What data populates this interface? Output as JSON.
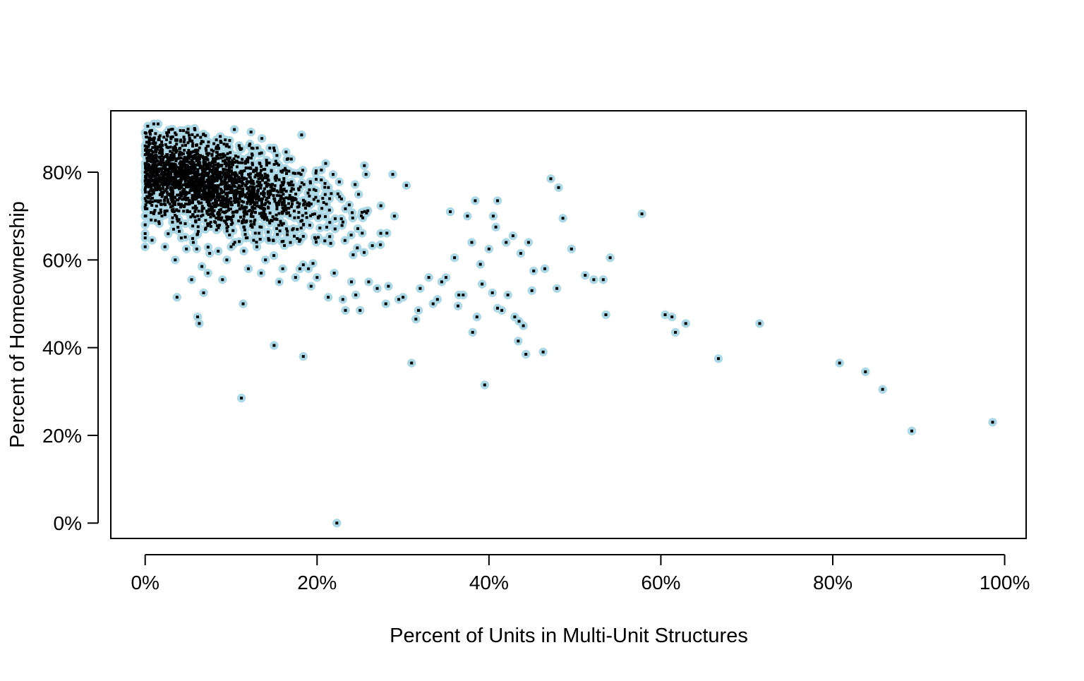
{
  "chart_data": {
    "type": "scatter",
    "title": "",
    "xlabel": "Percent of Units in Multi-Unit Structures",
    "ylabel": "Percent of Homeownership",
    "xlim": [
      -4,
      102.5
    ],
    "ylim": [
      -3.5,
      94
    ],
    "x_ticks": [
      {
        "value": 0,
        "label": "0%"
      },
      {
        "value": 20,
        "label": "20%"
      },
      {
        "value": 40,
        "label": "40%"
      },
      {
        "value": 60,
        "label": "60%"
      },
      {
        "value": 80,
        "label": "80%"
      },
      {
        "value": 100,
        "label": "100%"
      }
    ],
    "y_ticks": [
      {
        "value": 0,
        "label": "0%"
      },
      {
        "value": 20,
        "label": "20%"
      },
      {
        "value": 40,
        "label": "40%"
      },
      {
        "value": 60,
        "label": "60%"
      },
      {
        "value": 80,
        "label": "80%"
      }
    ],
    "grid": false,
    "marker": {
      "fill": "#add8e6",
      "center": "#000000"
    },
    "series": [
      {
        "points": [
          [
            0.0,
            89.0
          ],
          [
            0.0,
            86.0
          ],
          [
            0.0,
            84.0
          ],
          [
            0.0,
            82.0
          ],
          [
            0.0,
            80.0
          ],
          [
            0.0,
            78.0
          ],
          [
            0.0,
            76.0
          ],
          [
            0.0,
            74.0
          ],
          [
            0.0,
            72.0
          ],
          [
            0.0,
            70.0
          ],
          [
            0.0,
            68.0
          ],
          [
            0.0,
            66.0
          ],
          [
            0.0,
            65.0
          ],
          [
            0.0,
            63.0
          ],
          [
            0.2,
            88.0
          ],
          [
            0.3,
            90.5
          ],
          [
            0.5,
            85.0
          ],
          [
            0.5,
            79.0
          ],
          [
            0.6,
            73.0
          ],
          [
            0.8,
            64.5
          ],
          [
            1.0,
            91.0
          ],
          [
            1.0,
            87.0
          ],
          [
            1.2,
            81.0
          ],
          [
            1.2,
            69.0
          ],
          [
            1.5,
            91.0
          ],
          [
            1.5,
            77.0
          ],
          [
            1.8,
            73.5
          ],
          [
            2.0,
            85.0
          ],
          [
            2.2,
            80.0
          ],
          [
            2.3,
            70.5
          ],
          [
            2.3,
            63.0
          ],
          [
            2.5,
            89.0
          ],
          [
            3.0,
            76.0
          ],
          [
            3.3,
            67.0
          ],
          [
            3.5,
            60.0
          ],
          [
            3.7,
            51.5
          ],
          [
            4.0,
            82.0
          ],
          [
            4.2,
            65.0
          ],
          [
            4.5,
            88.0
          ],
          [
            4.8,
            62.5
          ],
          [
            5.0,
            89.0
          ],
          [
            5.2,
            71.0
          ],
          [
            5.4,
            55.5
          ],
          [
            5.6,
            64.0
          ],
          [
            5.8,
            88.0
          ],
          [
            6.0,
            62.5
          ],
          [
            6.1,
            47.0
          ],
          [
            6.3,
            45.5
          ],
          [
            6.6,
            58.5
          ],
          [
            6.8,
            52.5
          ],
          [
            7.0,
            67.0
          ],
          [
            7.3,
            57.0
          ],
          [
            7.5,
            61.5
          ],
          [
            8.0,
            86.5
          ],
          [
            8.5,
            62.0
          ],
          [
            9.0,
            55.5
          ],
          [
            9.5,
            60.0
          ],
          [
            10.0,
            63.0
          ],
          [
            11.0,
            85.5
          ],
          [
            11.2,
            28.5
          ],
          [
            11.4,
            50.0
          ],
          [
            12.0,
            58.0
          ],
          [
            12.4,
            85.5
          ],
          [
            13.0,
            63.0
          ],
          [
            13.5,
            57.0
          ],
          [
            14.0,
            60.0
          ],
          [
            14.5,
            85.5
          ],
          [
            15.0,
            40.5
          ],
          [
            15.2,
            82.5
          ],
          [
            15.6,
            55.0
          ],
          [
            16.0,
            58.0
          ],
          [
            17.0,
            83.0
          ],
          [
            17.5,
            56.0
          ],
          [
            18.0,
            58.0
          ],
          [
            18.2,
            88.5
          ],
          [
            18.4,
            38.0
          ],
          [
            19.0,
            58.0
          ],
          [
            19.3,
            54.0
          ],
          [
            20.0,
            56.0
          ],
          [
            20.5,
            80.5
          ],
          [
            21.0,
            82.0
          ],
          [
            21.3,
            51.5
          ],
          [
            22.0,
            57.0
          ],
          [
            22.3,
            0.0
          ],
          [
            23.0,
            51.0
          ],
          [
            23.3,
            48.5
          ],
          [
            24.0,
            55.0
          ],
          [
            24.5,
            52.0
          ],
          [
            25.0,
            48.5
          ],
          [
            25.5,
            81.5
          ],
          [
            25.7,
            79.5
          ],
          [
            26.0,
            55.0
          ],
          [
            27.0,
            53.5
          ],
          [
            28.0,
            50.0
          ],
          [
            28.3,
            54.0
          ],
          [
            28.8,
            79.5
          ],
          [
            29.0,
            70.0
          ],
          [
            29.5,
            51.0
          ],
          [
            30.0,
            51.5
          ],
          [
            30.4,
            77.0
          ],
          [
            31.0,
            36.5
          ],
          [
            31.5,
            46.5
          ],
          [
            31.8,
            48.5
          ],
          [
            32.0,
            53.5
          ],
          [
            33.0,
            56.0
          ],
          [
            33.5,
            50.0
          ],
          [
            34.0,
            51.0
          ],
          [
            34.5,
            55.0
          ],
          [
            35.0,
            56.0
          ],
          [
            35.5,
            71.0
          ],
          [
            36.0,
            60.5
          ],
          [
            36.5,
            52.0
          ],
          [
            36.4,
            49.5
          ],
          [
            37.0,
            52.0
          ],
          [
            37.5,
            70.0
          ],
          [
            38.0,
            64.0
          ],
          [
            38.1,
            43.5
          ],
          [
            38.4,
            73.5
          ],
          [
            38.6,
            47.0
          ],
          [
            39.0,
            59.0
          ],
          [
            39.2,
            54.5
          ],
          [
            39.5,
            31.5
          ],
          [
            40.0,
            62.5
          ],
          [
            40.4,
            52.5
          ],
          [
            40.5,
            70.0
          ],
          [
            40.8,
            67.5
          ],
          [
            41.0,
            49.0
          ],
          [
            41.5,
            48.5
          ],
          [
            41.0,
            73.5
          ],
          [
            42.0,
            64.0
          ],
          [
            42.2,
            52.0
          ],
          [
            42.8,
            65.5
          ],
          [
            43.0,
            47.0
          ],
          [
            43.4,
            41.5
          ],
          [
            43.5,
            46.0
          ],
          [
            43.7,
            61.5
          ],
          [
            44.0,
            45.0
          ],
          [
            44.3,
            38.5
          ],
          [
            44.6,
            64.0
          ],
          [
            45.0,
            53.0
          ],
          [
            45.2,
            57.5
          ],
          [
            46.3,
            39.0
          ],
          [
            46.5,
            58.0
          ],
          [
            47.2,
            78.5
          ],
          [
            47.9,
            53.5
          ],
          [
            48.1,
            76.5
          ],
          [
            48.6,
            69.5
          ],
          [
            49.6,
            62.5
          ],
          [
            51.2,
            56.5
          ],
          [
            52.2,
            55.5
          ],
          [
            53.3,
            55.5
          ],
          [
            53.6,
            47.5
          ],
          [
            54.1,
            60.5
          ],
          [
            57.8,
            70.5
          ],
          [
            60.5,
            47.5
          ],
          [
            61.3,
            47.0
          ],
          [
            61.7,
            43.5
          ],
          [
            62.9,
            45.5
          ],
          [
            66.7,
            37.5
          ],
          [
            71.5,
            45.5
          ],
          [
            80.8,
            36.5
          ],
          [
            83.8,
            34.5
          ],
          [
            85.8,
            30.5
          ],
          [
            89.2,
            21.0
          ],
          [
            98.6,
            23.0
          ]
        ]
      }
    ],
    "dense_region": {
      "x_mean": 8.0,
      "x_spread": 7.0,
      "x_max": 45,
      "y_intercept": 81.0,
      "slope": -0.45,
      "y_spread": 4.6,
      "y_max": 90,
      "count": 2300,
      "seed": 12345
    }
  }
}
